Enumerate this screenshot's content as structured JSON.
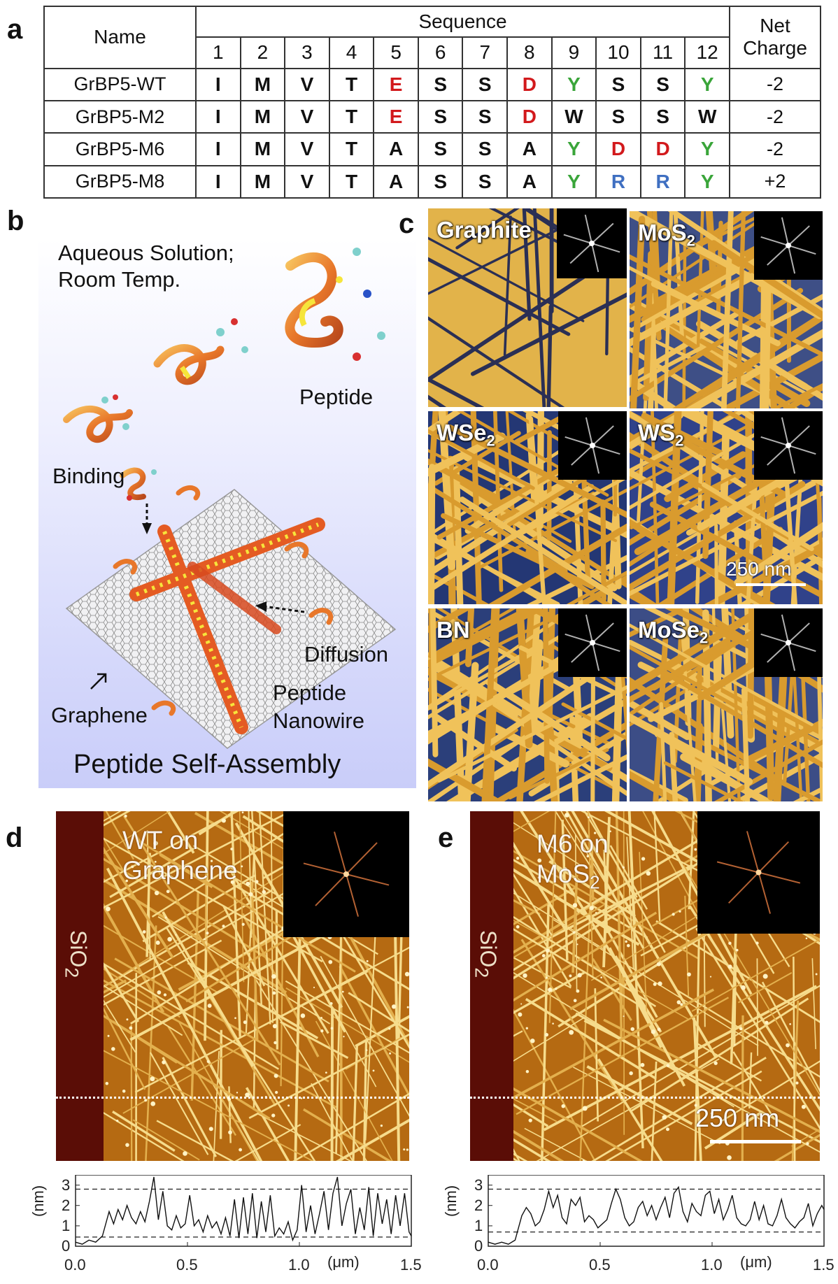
{
  "panel_labels": {
    "a": "a",
    "b": "b",
    "c": "c",
    "d": "d",
    "e": "e"
  },
  "table": {
    "name_header": "Name",
    "sequence_header": "Sequence",
    "charge_header_line1": "Net",
    "charge_header_line2": "Charge",
    "positions": [
      "1",
      "2",
      "3",
      "4",
      "5",
      "6",
      "7",
      "8",
      "9",
      "10",
      "11",
      "12"
    ],
    "rows": [
      {
        "name": "GrBP5-WT",
        "residues": [
          "I",
          "M",
          "V",
          "T",
          "E",
          "S",
          "S",
          "D",
          "Y",
          "S",
          "S",
          "Y"
        ],
        "colors": [
          "black",
          "black",
          "black",
          "black",
          "red",
          "black",
          "black",
          "red",
          "green",
          "black",
          "black",
          "green"
        ],
        "charge": "-2"
      },
      {
        "name": "GrBP5-M2",
        "residues": [
          "I",
          "M",
          "V",
          "T",
          "E",
          "S",
          "S",
          "D",
          "W",
          "S",
          "S",
          "W"
        ],
        "colors": [
          "black",
          "black",
          "black",
          "black",
          "red",
          "black",
          "black",
          "red",
          "black",
          "black",
          "black",
          "black"
        ],
        "charge": "-2"
      },
      {
        "name": "GrBP5-M6",
        "residues": [
          "I",
          "M",
          "V",
          "T",
          "A",
          "S",
          "S",
          "A",
          "Y",
          "D",
          "D",
          "Y"
        ],
        "colors": [
          "black",
          "black",
          "black",
          "black",
          "black",
          "black",
          "black",
          "black",
          "green",
          "red",
          "red",
          "green"
        ],
        "charge": "-2"
      },
      {
        "name": "GrBP5-M8",
        "residues": [
          "I",
          "M",
          "V",
          "T",
          "A",
          "S",
          "S",
          "A",
          "Y",
          "R",
          "R",
          "Y"
        ],
        "colors": [
          "black",
          "black",
          "black",
          "black",
          "black",
          "black",
          "black",
          "black",
          "green",
          "blue",
          "blue",
          "green"
        ],
        "charge": "+2"
      }
    ],
    "color_map": {
      "black": "#111111",
      "red": "#d2191c",
      "green": "#3aa53a",
      "blue": "#3f6fc1"
    }
  },
  "panel_b": {
    "solution_line1": "Aqueous Solution;",
    "solution_line2": "Room Temp.",
    "peptide": "Peptide",
    "binding": "Binding",
    "diffusion": "Diffusion",
    "graphene": "Graphene",
    "nanowire_line1": "Peptide",
    "nanowire_line2": "Nanowire",
    "caption": "Peptide Self-Assembly"
  },
  "panel_c": {
    "tiles": [
      {
        "label": "Graphite",
        "sub": ""
      },
      {
        "label": "MoS",
        "sub": "2"
      },
      {
        "label": "WSe",
        "sub": "2"
      },
      {
        "label": "WS",
        "sub": "2"
      },
      {
        "label": "BN",
        "sub": ""
      },
      {
        "label": "MoSe",
        "sub": "2"
      }
    ],
    "scale_bar": "250 nm"
  },
  "panel_d": {
    "title_line1": "WT on",
    "title_line2": "Graphene",
    "substrate": "SiO",
    "substrate_sub": "2"
  },
  "panel_e": {
    "title_line1": "M6 on",
    "title_line2": "MoS",
    "title_sub": "2",
    "substrate": "SiO",
    "substrate_sub": "2",
    "scale_bar": "250 nm"
  },
  "chart_data": [
    {
      "type": "line",
      "panel": "d",
      "ylabel": "(nm)",
      "xlabel": "(μm)",
      "xlim": [
        0,
        1.5
      ],
      "ylim": [
        0,
        3.5
      ],
      "xticks": [
        "0.0",
        "0.5",
        "1.0",
        "1.5"
      ],
      "yticks": [
        "0",
        "1",
        "2",
        "3"
      ],
      "reference_lines": [
        2.8,
        0.45
      ],
      "x": [
        0.0,
        0.03,
        0.06,
        0.09,
        0.12,
        0.15,
        0.17,
        0.19,
        0.21,
        0.23,
        0.25,
        0.27,
        0.29,
        0.31,
        0.33,
        0.35,
        0.37,
        0.39,
        0.41,
        0.43,
        0.45,
        0.47,
        0.49,
        0.51,
        0.53,
        0.55,
        0.57,
        0.59,
        0.61,
        0.63,
        0.65,
        0.67,
        0.69,
        0.71,
        0.73,
        0.75,
        0.77,
        0.79,
        0.81,
        0.83,
        0.85,
        0.87,
        0.89,
        0.91,
        0.93,
        0.95,
        0.97,
        0.99,
        1.01,
        1.03,
        1.05,
        1.07,
        1.09,
        1.11,
        1.13,
        1.15,
        1.17,
        1.19,
        1.21,
        1.23,
        1.25,
        1.27,
        1.29,
        1.31,
        1.33,
        1.35,
        1.37,
        1.39,
        1.41,
        1.43,
        1.45,
        1.47,
        1.49,
        1.5
      ],
      "y": [
        0.2,
        0.1,
        0.3,
        0.2,
        0.5,
        1.7,
        1.1,
        1.8,
        1.3,
        2.0,
        1.4,
        1.1,
        1.7,
        1.2,
        2.2,
        3.4,
        1.3,
        2.7,
        1.0,
        0.8,
        1.5,
        0.9,
        1.1,
        2.5,
        1.0,
        1.3,
        0.7,
        1.5,
        0.9,
        1.2,
        0.6,
        1.4,
        0.5,
        2.3,
        0.4,
        2.4,
        0.6,
        2.6,
        0.4,
        2.2,
        0.7,
        2.5,
        0.5,
        0.9,
        0.6,
        1.2,
        0.3,
        0.8,
        3.0,
        0.7,
        2.0,
        0.6,
        1.6,
        2.7,
        0.8,
        2.6,
        3.4,
        1.0,
        2.1,
        2.8,
        0.6,
        1.9,
        0.8,
        2.9,
        0.5,
        2.6,
        1.1,
        2.3,
        0.6,
        2.5,
        1.0,
        2.6,
        0.7,
        0.5
      ]
    },
    {
      "type": "line",
      "panel": "e",
      "ylabel": "(nm)",
      "xlabel": "(μm)",
      "xlim": [
        0,
        1.5
      ],
      "ylim": [
        0,
        3.5
      ],
      "xticks": [
        "0.0",
        "0.5",
        "1.0",
        "1.5"
      ],
      "yticks": [
        "0",
        "1",
        "2",
        "3"
      ],
      "reference_lines": [
        2.8,
        0.7
      ],
      "x": [
        0.0,
        0.03,
        0.06,
        0.09,
        0.12,
        0.15,
        0.17,
        0.19,
        0.21,
        0.23,
        0.25,
        0.27,
        0.29,
        0.31,
        0.33,
        0.35,
        0.37,
        0.39,
        0.41,
        0.43,
        0.45,
        0.47,
        0.49,
        0.51,
        0.53,
        0.55,
        0.57,
        0.59,
        0.61,
        0.63,
        0.65,
        0.67,
        0.69,
        0.71,
        0.73,
        0.75,
        0.77,
        0.79,
        0.81,
        0.83,
        0.85,
        0.87,
        0.89,
        0.91,
        0.93,
        0.95,
        0.97,
        0.99,
        1.01,
        1.03,
        1.05,
        1.07,
        1.09,
        1.11,
        1.13,
        1.15,
        1.17,
        1.19,
        1.21,
        1.23,
        1.25,
        1.27,
        1.29,
        1.31,
        1.33,
        1.35,
        1.37,
        1.39,
        1.41,
        1.43,
        1.45,
        1.47,
        1.49,
        1.5
      ],
      "y": [
        0.2,
        0.1,
        0.2,
        0.1,
        0.3,
        1.5,
        1.9,
        1.6,
        1.0,
        1.2,
        1.8,
        2.7,
        1.9,
        2.5,
        1.4,
        1.1,
        2.3,
        2.0,
        2.4,
        1.2,
        1.5,
        1.3,
        0.9,
        1.1,
        1.3,
        2.1,
        2.8,
        2.3,
        1.4,
        1.0,
        1.2,
        1.9,
        2.2,
        1.5,
        2.0,
        1.3,
        1.9,
        2.4,
        1.4,
        2.6,
        2.9,
        1.7,
        1.2,
        2.1,
        1.7,
        1.5,
        2.5,
        2.7,
        1.6,
        2.3,
        1.3,
        1.8,
        2.5,
        1.4,
        1.1,
        1.0,
        1.3,
        2.2,
        1.3,
        2.0,
        1.1,
        1.0,
        1.5,
        2.3,
        1.4,
        1.1,
        0.9,
        1.2,
        1.4,
        2.1,
        1.0,
        1.6,
        2.0,
        1.8
      ]
    }
  ]
}
